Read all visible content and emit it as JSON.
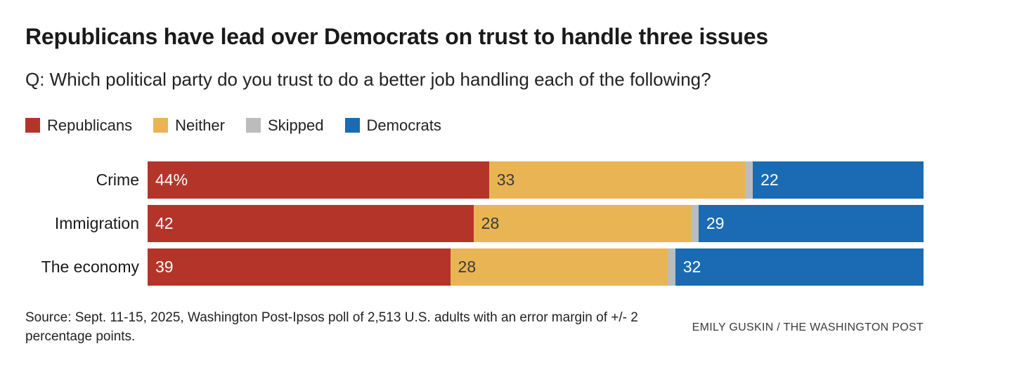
{
  "header": {
    "title": "Republicans have lead over Democrats on trust to handle three issues",
    "question": "Q: Which political party do you trust to do a better job handling each of the following?"
  },
  "legend": {
    "items": [
      {
        "label": "Republicans",
        "color": "#b5342a"
      },
      {
        "label": "Neither",
        "color": "#e9b454"
      },
      {
        "label": "Skipped",
        "color": "#bcbcbc"
      },
      {
        "label": "Democrats",
        "color": "#1a6bb3"
      }
    ]
  },
  "chart_data": {
    "type": "bar",
    "stacked": true,
    "orientation": "horizontal",
    "value_unit": "percent",
    "xlim": [
      0,
      100
    ],
    "categories": [
      "Crime",
      "Immigration",
      "The economy"
    ],
    "series": [
      {
        "name": "Republicans",
        "color": "#b5342a",
        "text_color": "#ffffff",
        "values": [
          44,
          42,
          39
        ],
        "labels": [
          "44%",
          "42",
          "39"
        ]
      },
      {
        "name": "Neither",
        "color": "#e9b454",
        "text_color": "#3b3b3b",
        "values": [
          33,
          28,
          28
        ],
        "labels": [
          "33",
          "28",
          "28"
        ]
      },
      {
        "name": "Skipped",
        "color": "#bcbcbc",
        "text_color": "#3b3b3b",
        "values": [
          1,
          1,
          1
        ],
        "labels": [
          "",
          "",
          ""
        ]
      },
      {
        "name": "Democrats",
        "color": "#1a6bb3",
        "text_color": "#ffffff",
        "values": [
          22,
          29,
          32
        ],
        "labels": [
          "22",
          "29",
          "32"
        ]
      }
    ]
  },
  "footer": {
    "source": "Source: Sept. 11-15, 2025, Washington Post-Ipsos poll of 2,513 U.S. adults with an error margin of +/- 2 percentage points.",
    "byline": "EMILY GUSKIN / THE WASHINGTON POST"
  }
}
